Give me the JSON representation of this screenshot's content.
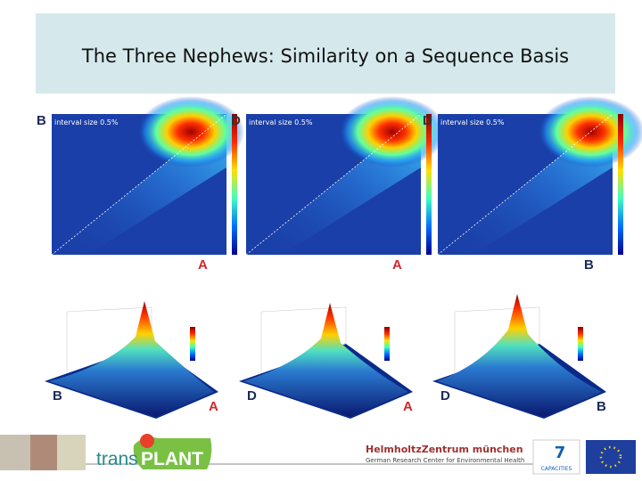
{
  "header": {
    "title": "The Three Nephews: Similarity on a Sequence Basis"
  },
  "heatmaps": [
    {
      "label": "interval size 0.5%",
      "left_letter": "B",
      "bottom_letter": "A"
    },
    {
      "label": "interval size 0.5%",
      "left_letter": "D",
      "bottom_letter": "A"
    },
    {
      "label": "interval size 0.5%",
      "left_letter": "D",
      "bottom_letter": "B"
    }
  ],
  "surfaces": [
    {
      "left_letter": "B",
      "right_letter": "A"
    },
    {
      "left_letter": "D",
      "right_letter": "A"
    },
    {
      "left_letter": "D",
      "right_letter": "B"
    }
  ],
  "footer": {
    "logo_prefix": "trans",
    "logo_main": "PLANT",
    "institute": "HelmholtzZentrum münchen",
    "institute_subtitle": "German Research Center for Environmental Health",
    "program": "CAPACITIES"
  }
}
